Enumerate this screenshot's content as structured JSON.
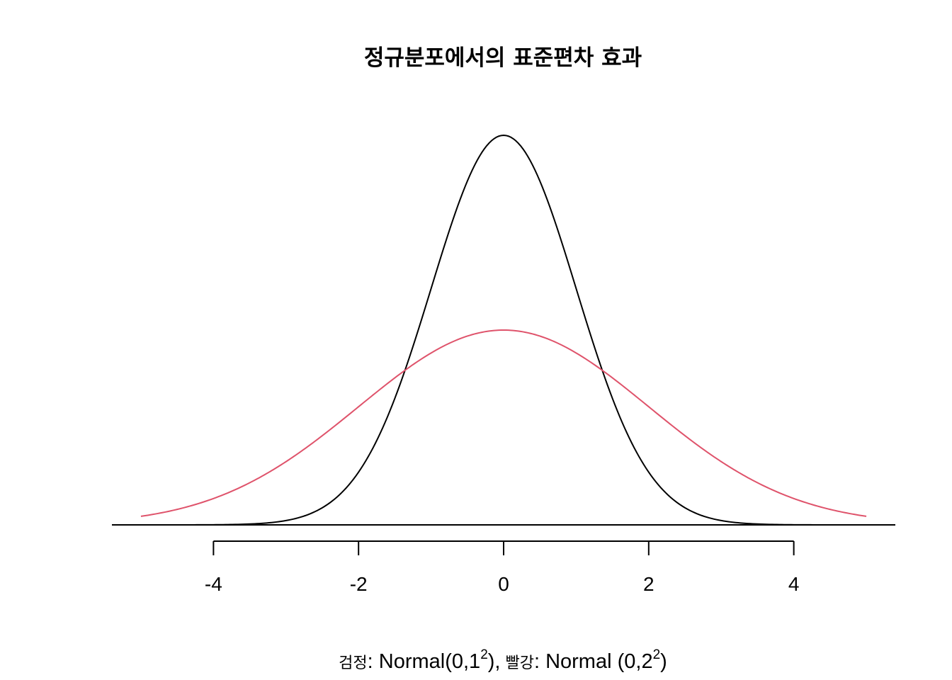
{
  "chart_data": {
    "type": "line",
    "title": "정규분포에서의 표준편차 효과",
    "xlabel": {
      "prefix_ko": "검정",
      "part1": ": Normal(0,1",
      "sup1": "2",
      "part2": "),",
      "mid_ko": " 빨강",
      "part3": ": Normal (0,2",
      "sup2": "2",
      "part4": ")"
    },
    "ylabel": "",
    "x_range": [
      -5,
      5
    ],
    "xlim": [
      -5.4,
      5.4
    ],
    "ylim": [
      0,
      0.42
    ],
    "x_ticks": [
      -4,
      -2,
      0,
      2,
      4
    ],
    "x_tick_labels": [
      "-4",
      "-2",
      "0",
      "2",
      "4"
    ],
    "y_axis_shown": false,
    "baseline_y": 0,
    "grid": false,
    "legend": "none",
    "series": [
      {
        "label": "Normal(0,1²)",
        "mean": 0,
        "sd": 1,
        "color": "#000000",
        "x": [
          -5,
          -4,
          -3,
          -2.5,
          -2,
          -1.5,
          -1,
          -0.5,
          0,
          0.5,
          1,
          1.5,
          2,
          2.5,
          3,
          4,
          5
        ],
        "y": [
          1.5e-06,
          0.00013,
          0.0044,
          0.0175,
          0.054,
          0.1295,
          0.242,
          0.352,
          0.399,
          0.352,
          0.242,
          0.1295,
          0.054,
          0.0175,
          0.0044,
          0.00013,
          1.5e-06
        ]
      },
      {
        "label": "Normal(0,2²)",
        "mean": 0,
        "sd": 2,
        "color": "#DF536B",
        "x": [
          -5,
          -4,
          -3,
          -2,
          -1,
          0,
          1,
          2,
          3,
          4,
          5
        ],
        "y": [
          0.0088,
          0.027,
          0.0648,
          0.121,
          0.176,
          0.1995,
          0.176,
          0.121,
          0.0648,
          0.027,
          0.0088
        ]
      }
    ]
  }
}
